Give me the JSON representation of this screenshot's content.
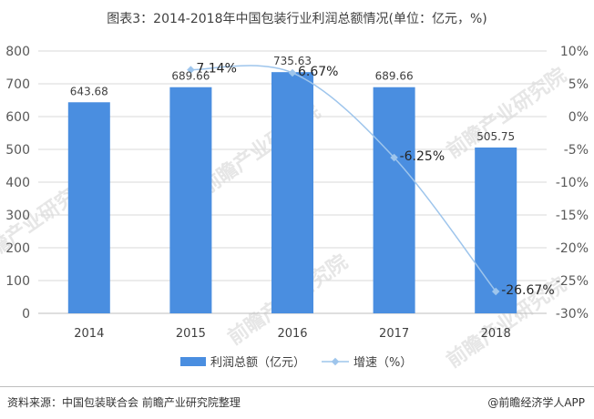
{
  "title": "图表3：2014-2018年中国包装行业利润总额情况(单位：亿元，%)",
  "source": "资料来源：中国包装联合会 前瞻产业研究院整理",
  "brand": "@前瞻经济学人APP",
  "watermark": "前瞻产业研究院",
  "colors": {
    "bar": "#4a8ee0",
    "line": "#9ec5ec",
    "grid": "#d9d9d9",
    "axis_text": "#595959"
  },
  "chart_data": {
    "type": "bar",
    "categories": [
      "2014",
      "2015",
      "2016",
      "2017",
      "2018"
    ],
    "series": [
      {
        "name": "利润总额（亿元）",
        "type": "bar",
        "axis": "left",
        "values": [
          643.68,
          689.66,
          735.63,
          689.66,
          505.75
        ],
        "labels": [
          "643.68",
          "689.66",
          "735.63",
          "689.66",
          "505.75"
        ]
      },
      {
        "name": "增速（%）",
        "type": "line",
        "axis": "right",
        "values": [
          null,
          7.14,
          6.67,
          -6.25,
          -26.67
        ],
        "labels": [
          "",
          "7.14%",
          "6.67%",
          "-6.25%",
          "-26.67%"
        ]
      }
    ],
    "y_left": {
      "min": 0,
      "max": 800,
      "step": 100,
      "ticks": [
        "0",
        "100",
        "200",
        "300",
        "400",
        "500",
        "600",
        "700",
        "800"
      ]
    },
    "y_right": {
      "min": -30,
      "max": 10,
      "step": 5,
      "ticks": [
        "-30%",
        "-25%",
        "-20%",
        "-15%",
        "-10%",
        "-5%",
        "0%",
        "5%",
        "10%"
      ]
    },
    "grid": true,
    "legend_position": "bottom"
  }
}
